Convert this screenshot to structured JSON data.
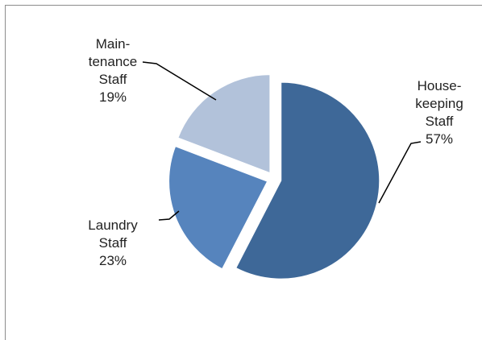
{
  "chart_data": {
    "type": "pie",
    "categories": [
      "House-\nkeeping\nStaff",
      "Laundry\nStaff",
      "Main-\ntenance\nStaff"
    ],
    "values": [
      57,
      23,
      19
    ],
    "value_labels": [
      "57%",
      "23%",
      "19%"
    ],
    "colors": [
      "#3e6898",
      "#5684bd",
      "#b2c2da"
    ]
  }
}
